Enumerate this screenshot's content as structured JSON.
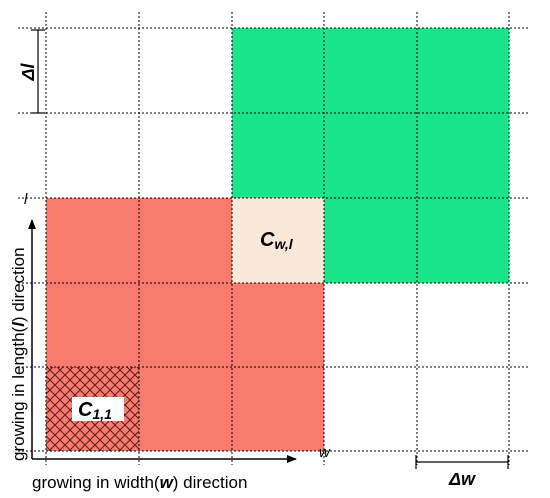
{
  "colors": {
    "red_region": "#f97b70",
    "green_region": "#19e68a",
    "current_cell": "#fae8d8",
    "grid_line": "#000000",
    "hatch_fill": "#f97b70",
    "hatch_line": "#5a1c1c"
  },
  "labels": {
    "delta_l": "Δl",
    "l_mark": "l",
    "w_mark": "w",
    "delta_w": "Δw",
    "cell_current_main": "C",
    "cell_current_sub": "w,l",
    "cell_origin_main": "C",
    "cell_origin_sub": "1,1"
  },
  "axes": {
    "x_label_pre": "growing in width(",
    "x_label_var": "w",
    "x_label_post": ") direction",
    "y_label_pre": "growing in length(",
    "y_label_var": "l",
    "y_label_post": ") direction"
  },
  "grid": {
    "columns": 5,
    "rows": 5,
    "red_cells": [
      [
        0,
        0
      ],
      [
        1,
        0
      ],
      [
        2,
        0
      ],
      [
        0,
        1
      ],
      [
        1,
        1
      ],
      [
        2,
        1
      ],
      [
        0,
        2
      ],
      [
        1,
        2
      ],
      [
        2,
        2
      ]
    ],
    "green_cells": [
      [
        2,
        3
      ],
      [
        3,
        3
      ],
      [
        4,
        3
      ],
      [
        2,
        4
      ],
      [
        3,
        4
      ],
      [
        4,
        4
      ],
      [
        3,
        2
      ],
      [
        4,
        2
      ]
    ],
    "current_cell": [
      2,
      2
    ],
    "origin_cell": [
      0,
      0
    ]
  }
}
